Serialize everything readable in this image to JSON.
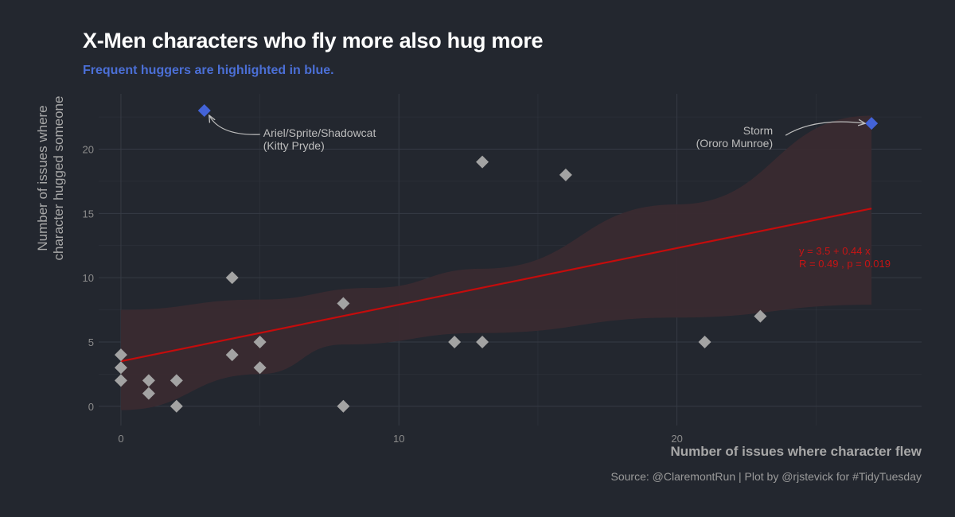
{
  "title": "X-Men characters who fly more also hug more",
  "subtitle": "Frequent huggers are highlighted in blue.",
  "caption": "Source: @ClaremontRun | Plot by @rjstevick for #TidyTuesday",
  "colors": {
    "background": "#23272f",
    "grid": "#363b45",
    "point": "#a3a3a3",
    "highlight": "#4363d8",
    "line": "#c40c0c",
    "ribbon": "#3a2a30",
    "annotation": "#bdbdbd"
  },
  "chart_data": {
    "type": "scatter",
    "xlabel": "Number of issues where character flew",
    "ylabel": [
      "Number of issues where",
      "character hugged someone"
    ],
    "xlim": [
      -0.8,
      28.8
    ],
    "ylim": [
      -1.5,
      24.3
    ],
    "xticks": [
      0,
      10,
      20
    ],
    "yticks": [
      0,
      5,
      10,
      15,
      20
    ],
    "grid": true,
    "points": [
      {
        "x": 0,
        "y": 4
      },
      {
        "x": 0,
        "y": 3
      },
      {
        "x": 0,
        "y": 2
      },
      {
        "x": 1,
        "y": 2
      },
      {
        "x": 1,
        "y": 1
      },
      {
        "x": 2,
        "y": 2
      },
      {
        "x": 2,
        "y": 0
      },
      {
        "x": 4,
        "y": 10
      },
      {
        "x": 4,
        "y": 4
      },
      {
        "x": 5,
        "y": 5
      },
      {
        "x": 5,
        "y": 3
      },
      {
        "x": 8,
        "y": 8
      },
      {
        "x": 8,
        "y": 0
      },
      {
        "x": 12,
        "y": 5
      },
      {
        "x": 13,
        "y": 19
      },
      {
        "x": 13,
        "y": 5
      },
      {
        "x": 16,
        "y": 18
      },
      {
        "x": 21,
        "y": 5
      },
      {
        "x": 23,
        "y": 7
      }
    ],
    "highlighted": [
      {
        "x": 3,
        "y": 23,
        "label": [
          "Ariel/Sprite/Shadowcat",
          "(Kitty Pryde)"
        ]
      },
      {
        "x": 27,
        "y": 22,
        "label": [
          "Storm",
          "(Ororo Munroe)"
        ]
      }
    ],
    "regression": {
      "intercept": 3.5,
      "slope": 0.44,
      "x_range": [
        0,
        27
      ],
      "ribbon_lower": [
        [
          0,
          -0.3
        ],
        [
          5,
          2.5
        ],
        [
          8,
          4.8
        ],
        [
          13,
          5.7
        ],
        [
          20,
          6.9
        ],
        [
          27,
          7.9
        ]
      ],
      "ribbon_upper": [
        [
          0,
          7.5
        ],
        [
          5,
          8.3
        ],
        [
          9,
          9.2
        ],
        [
          13,
          10.7
        ],
        [
          20,
          15.7
        ],
        [
          27,
          22.6
        ]
      ],
      "equation": [
        "y = 3.5 + 0.44 x",
        "R = 0.49 , p = 0.019"
      ]
    }
  }
}
